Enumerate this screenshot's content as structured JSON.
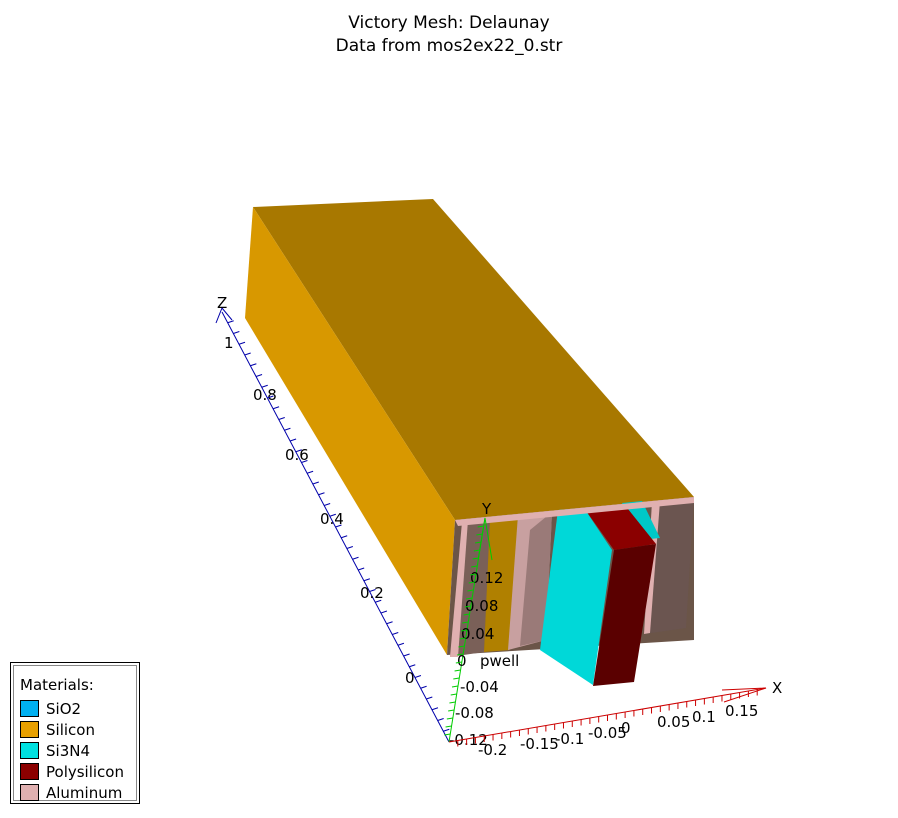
{
  "title": {
    "line1": "Victory Mesh: Delaunay",
    "line2": "Data from mos2ex22_0.str"
  },
  "axes": {
    "x": {
      "name": "X",
      "color": "#cc0000",
      "ticks": [
        "-0.2",
        "-0.15",
        "-0.1",
        "-0.05",
        "0",
        "0.05",
        "0.1",
        "0.15"
      ]
    },
    "y": {
      "name": "Y",
      "color": "#00cc00",
      "ticks": [
        "0.12",
        "0.08",
        "0.04",
        "0",
        "-0.04",
        "-0.08",
        "-0.12"
      ]
    },
    "z": {
      "name": "Z",
      "color": "#0000aa",
      "ticks": [
        "1",
        "0.8",
        "0.6",
        "0.4",
        "0.2",
        "0"
      ]
    }
  },
  "region_label": "pwell",
  "legend": {
    "title": "Materials:",
    "items": [
      {
        "label": "SiO2",
        "color": "#00b0f0"
      },
      {
        "label": "Silicon",
        "color": "#e8a000"
      },
      {
        "label": "Si3N4",
        "color": "#00e0e0"
      },
      {
        "label": "Polysilicon",
        "color": "#8b0000"
      },
      {
        "label": "Aluminum",
        "color": "#e0b0b0"
      }
    ]
  }
}
